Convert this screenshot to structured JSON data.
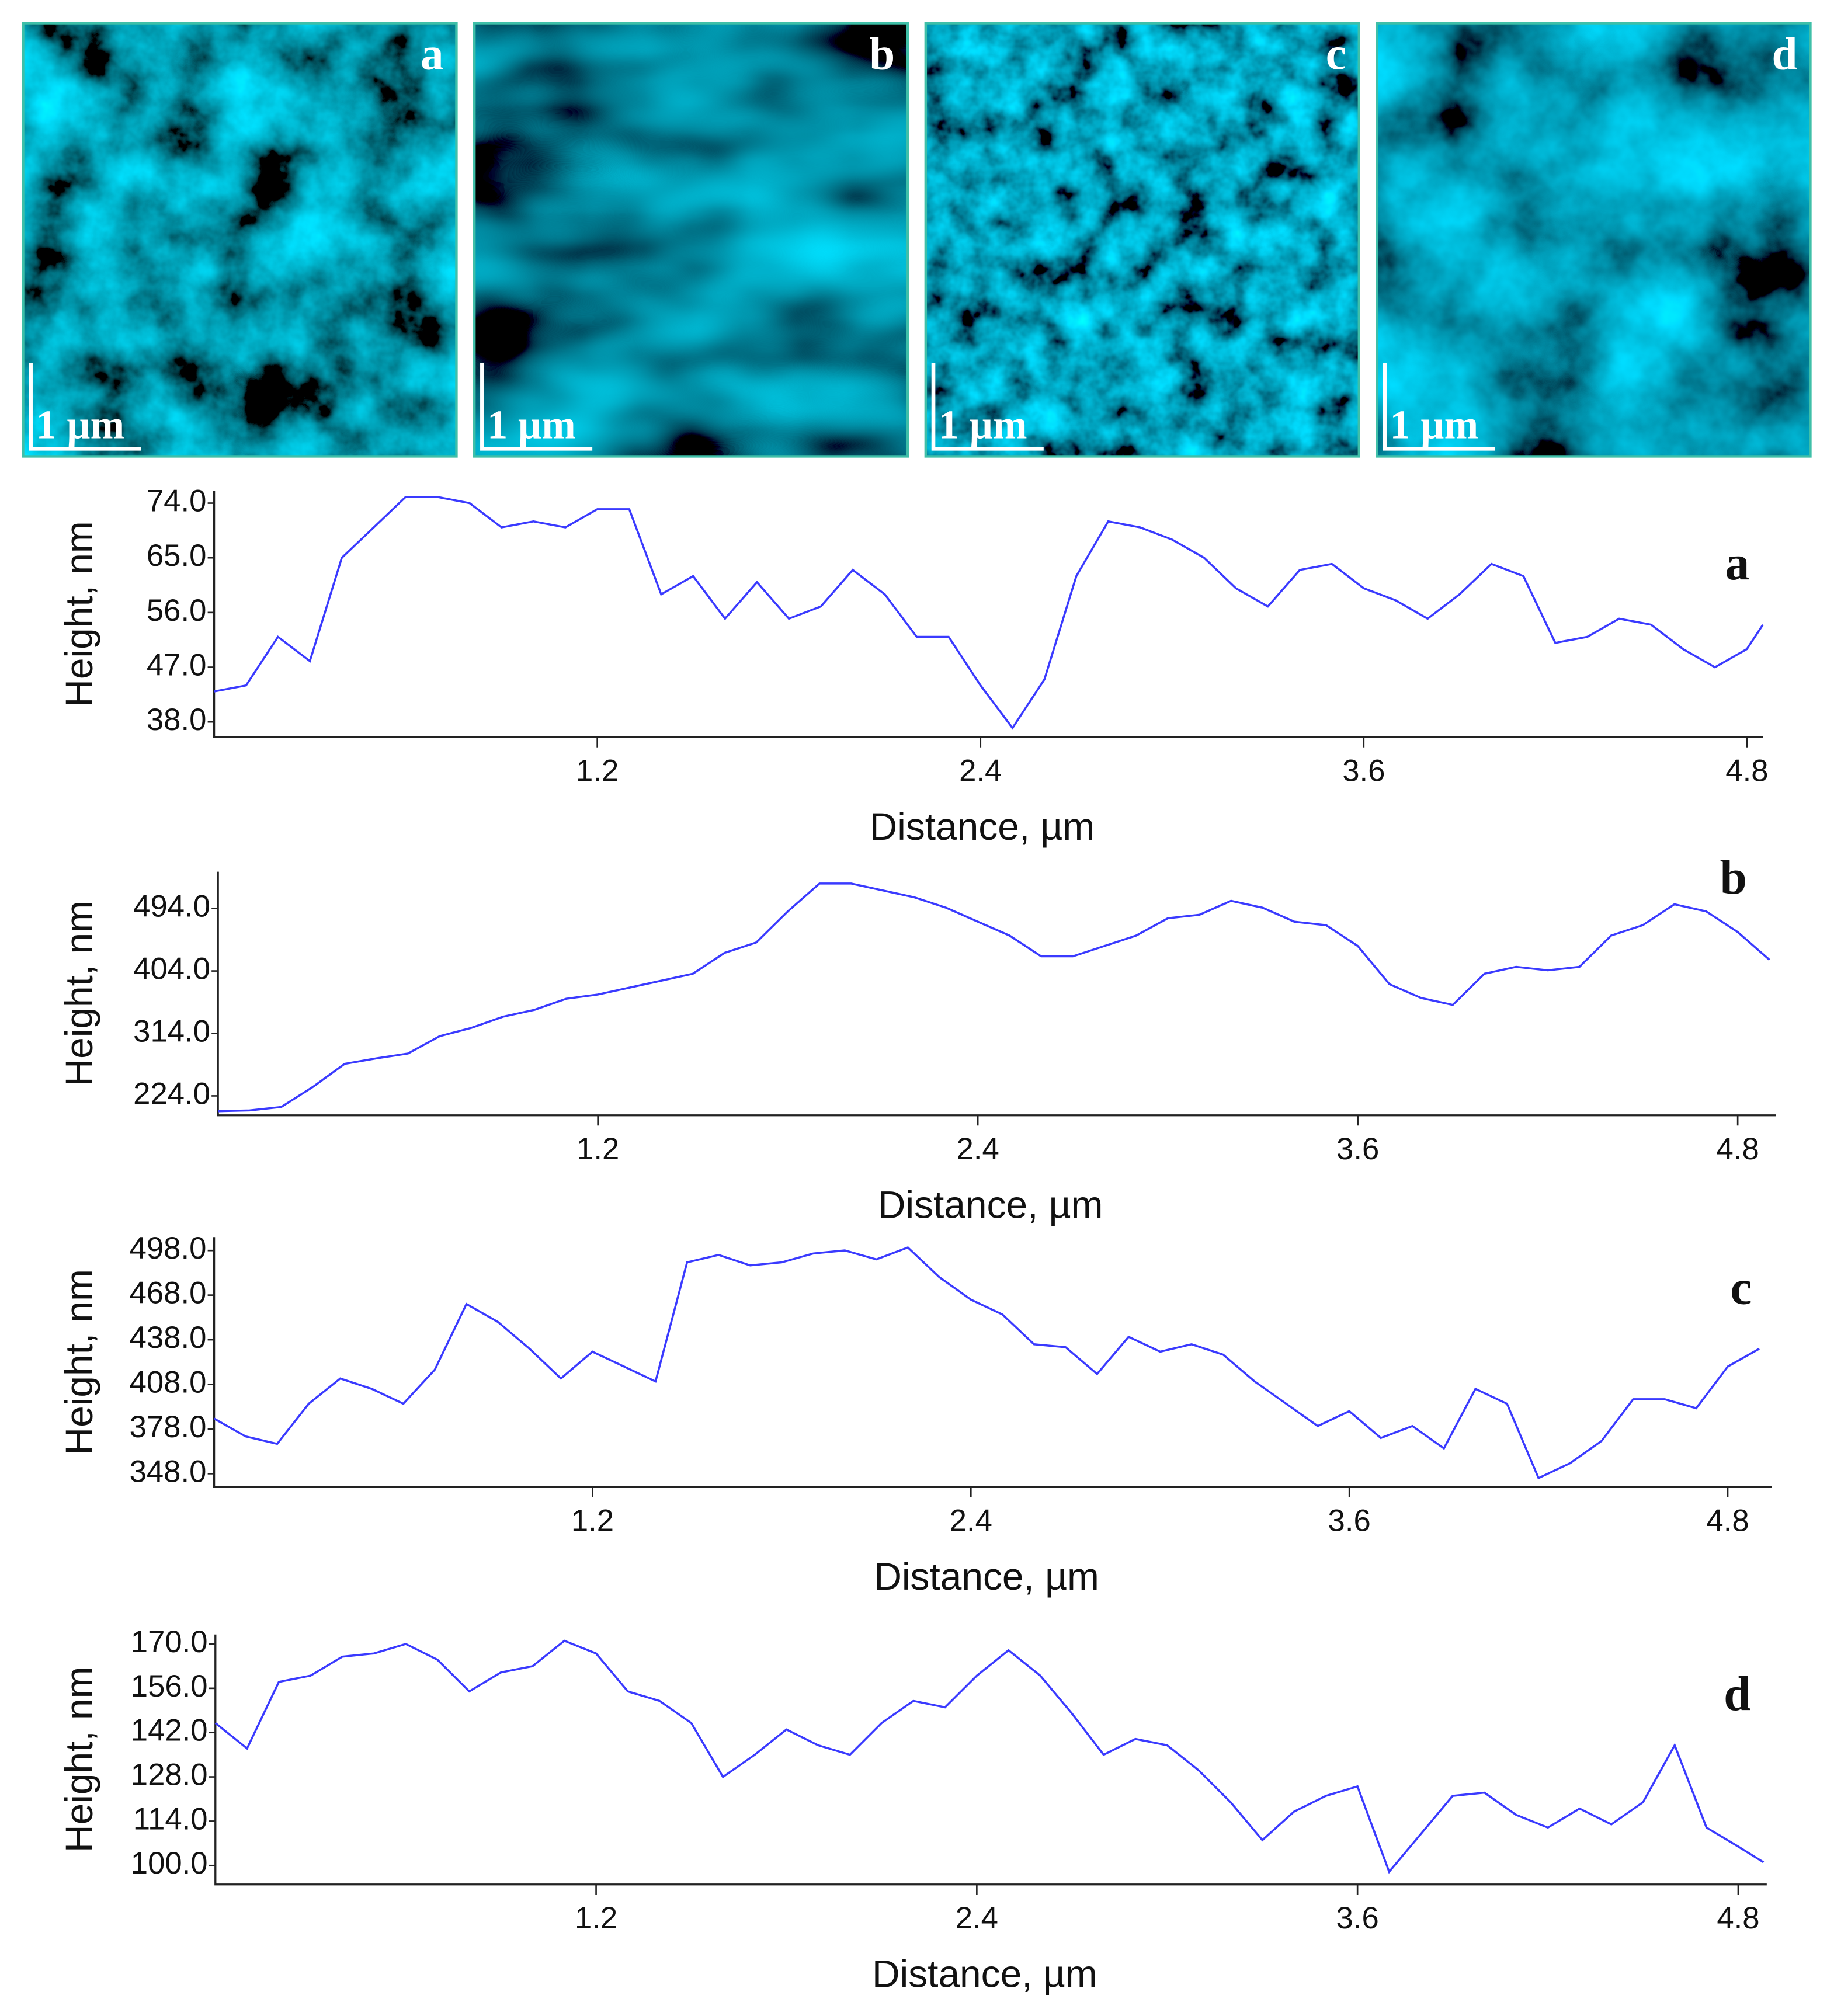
{
  "images": [
    {
      "label": "a",
      "scale_bar": "1 µm"
    },
    {
      "label": "b",
      "scale_bar": "1 µm"
    },
    {
      "label": "c",
      "scale_bar": "1 µm"
    },
    {
      "label": "d",
      "scale_bar": "1 µm"
    }
  ],
  "chart_data": [
    {
      "type": "line",
      "annotation": "a",
      "xlabel": "Distance, µm",
      "ylabel": "Height, nm",
      "color": "#3a3aff",
      "x": [
        0,
        0.1,
        0.2,
        0.3,
        0.4,
        0.5,
        0.6,
        0.7,
        0.8,
        0.9,
        1,
        1.1,
        1.2,
        1.3,
        1.4,
        1.5,
        1.6,
        1.7,
        1.8,
        1.9,
        2,
        2.1,
        2.2,
        2.3,
        2.4,
        2.5,
        2.6,
        2.7,
        2.8,
        2.9,
        3,
        3.1,
        3.2,
        3.3,
        3.4,
        3.5,
        3.6,
        3.7,
        3.8,
        3.9,
        4,
        4.1,
        4.2,
        4.3,
        4.4,
        4.5,
        4.6,
        4.7,
        4.8,
        4.85
      ],
      "values": [
        43,
        44,
        52,
        48,
        65,
        70,
        75,
        75,
        74,
        70,
        71,
        70,
        73,
        73,
        59,
        62,
        55,
        61,
        55,
        57,
        63,
        59,
        52,
        52,
        44,
        37,
        45,
        62,
        71,
        70,
        68,
        65,
        60,
        57,
        63,
        64,
        60,
        58,
        55,
        59,
        64,
        62,
        51,
        52,
        55,
        54,
        50,
        47,
        50,
        54
      ],
      "xlim": [
        0,
        4.85
      ],
      "xticks": [
        1.2,
        2.4,
        3.6,
        4.8
      ],
      "ylim": [
        35.5,
        76
      ],
      "yticks": [
        {
          "value": 38,
          "label": "38.0"
        },
        {
          "value": 47,
          "label": "47.0"
        },
        {
          "value": 56,
          "label": "56.0"
        },
        {
          "value": 65,
          "label": "65.0"
        },
        {
          "value": 74,
          "label": "74.0"
        }
      ]
    },
    {
      "type": "line",
      "annotation": "b",
      "xlabel": "Distance, µm",
      "ylabel": "Height, nm",
      "color": "#3a3aff",
      "x": [
        0,
        0.1,
        0.2,
        0.3,
        0.4,
        0.5,
        0.6,
        0.7,
        0.8,
        0.9,
        1,
        1.1,
        1.2,
        1.3,
        1.4,
        1.5,
        1.6,
        1.7,
        1.8,
        1.9,
        2,
        2.1,
        2.2,
        2.3,
        2.4,
        2.5,
        2.6,
        2.7,
        2.8,
        2.9,
        3,
        3.1,
        3.2,
        3.3,
        3.4,
        3.5,
        3.6,
        3.7,
        3.8,
        3.9,
        4,
        4.1,
        4.2,
        4.3,
        4.4,
        4.5,
        4.6,
        4.7,
        4.8,
        4.9
      ],
      "values": [
        202,
        203,
        208,
        237,
        270,
        278,
        285,
        310,
        322,
        338,
        348,
        364,
        370,
        380,
        390,
        400,
        430,
        445,
        490,
        530,
        530,
        520,
        510,
        495,
        475,
        455,
        425,
        425,
        440,
        455,
        480,
        485,
        505,
        495,
        475,
        470,
        440,
        385,
        365,
        355,
        400,
        410,
        405,
        410,
        455,
        470,
        500,
        490,
        460,
        420
      ],
      "xlim": [
        0,
        4.92
      ],
      "xticks": [
        1.2,
        2.4,
        3.6,
        4.8
      ],
      "ylim": [
        196,
        547
      ],
      "yticks": [
        {
          "value": 224,
          "label": "224.0"
        },
        {
          "value": 314,
          "label": "314.0"
        },
        {
          "value": 404,
          "label": "404.0"
        },
        {
          "value": 494,
          "label": "494.0"
        }
      ]
    },
    {
      "type": "line",
      "annotation": "c",
      "xlabel": "Distance, µm",
      "ylabel": "Height, nm",
      "color": "#3a3aff",
      "x": [
        0,
        0.1,
        0.2,
        0.3,
        0.4,
        0.5,
        0.6,
        0.7,
        0.8,
        0.9,
        1,
        1.1,
        1.2,
        1.3,
        1.4,
        1.5,
        1.6,
        1.7,
        1.8,
        1.9,
        2,
        2.1,
        2.2,
        2.3,
        2.4,
        2.5,
        2.6,
        2.7,
        2.8,
        2.9,
        3,
        3.1,
        3.2,
        3.3,
        3.4,
        3.5,
        3.6,
        3.7,
        3.8,
        3.9,
        4,
        4.1,
        4.2,
        4.3,
        4.4,
        4.5,
        4.6,
        4.7,
        4.8,
        4.9
      ],
      "values": [
        385,
        373,
        368,
        395,
        412,
        405,
        395,
        418,
        462,
        450,
        432,
        412,
        430,
        420,
        410,
        490,
        495,
        488,
        490,
        496,
        498,
        492,
        500,
        480,
        465,
        455,
        435,
        433,
        415,
        440,
        430,
        435,
        428,
        410,
        395,
        380,
        390,
        372,
        380,
        365,
        405,
        395,
        345,
        355,
        370,
        398,
        398,
        392,
        420,
        432
      ],
      "xlim": [
        0,
        4.94
      ],
      "xticks": [
        1.2,
        2.4,
        3.6,
        4.8
      ],
      "ylim": [
        339,
        507
      ],
      "yticks": [
        {
          "value": 348,
          "label": "348.0"
        },
        {
          "value": 378,
          "label": "378.0"
        },
        {
          "value": 408,
          "label": "408.0"
        },
        {
          "value": 438,
          "label": "438.0"
        },
        {
          "value": 468,
          "label": "468.0"
        },
        {
          "value": 498,
          "label": "498.0"
        }
      ]
    },
    {
      "type": "line",
      "annotation": "d",
      "xlabel": "Distance, µm",
      "ylabel": "Height, nm",
      "color": "#3a3aff",
      "x": [
        0,
        0.1,
        0.2,
        0.3,
        0.4,
        0.5,
        0.6,
        0.7,
        0.8,
        0.9,
        1,
        1.1,
        1.2,
        1.3,
        1.4,
        1.5,
        1.6,
        1.7,
        1.8,
        1.9,
        2,
        2.1,
        2.2,
        2.3,
        2.4,
        2.5,
        2.6,
        2.7,
        2.8,
        2.9,
        3,
        3.1,
        3.2,
        3.3,
        3.4,
        3.5,
        3.6,
        3.7,
        3.8,
        3.9,
        4,
        4.1,
        4.2,
        4.3,
        4.4,
        4.5,
        4.6,
        4.7,
        4.8,
        4.88
      ],
      "values": [
        145,
        137,
        158,
        160,
        166,
        167,
        170,
        165,
        155,
        161,
        163,
        171,
        167,
        155,
        152,
        145,
        128,
        135,
        143,
        138,
        135,
        145,
        152,
        150,
        160,
        168,
        160,
        148,
        135,
        140,
        138,
        130,
        120,
        108,
        117,
        122,
        125,
        98,
        110,
        122,
        123,
        116,
        112,
        118,
        113,
        120,
        138,
        112,
        106,
        101
      ],
      "xlim": [
        0,
        4.89
      ],
      "xticks": [
        1.2,
        2.4,
        3.6,
        4.8
      ],
      "ylim": [
        94,
        173
      ],
      "yticks": [
        {
          "value": 100,
          "label": "100.0"
        },
        {
          "value": 114,
          "label": "114.0"
        },
        {
          "value": 128,
          "label": "128.0"
        },
        {
          "value": 142,
          "label": "142.0"
        },
        {
          "value": 156,
          "label": "156.0"
        },
        {
          "value": 170,
          "label": "170.0"
        }
      ]
    }
  ]
}
